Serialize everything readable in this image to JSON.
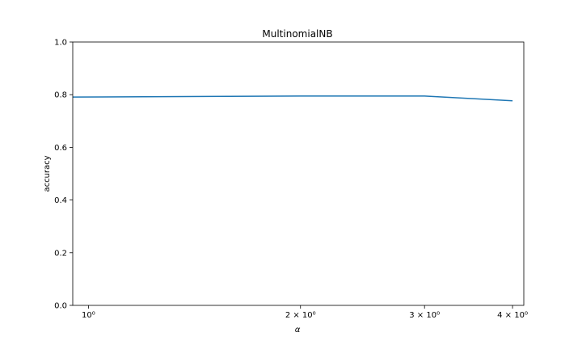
{
  "chart_data": {
    "type": "line",
    "title": "MultinomialNB",
    "xlabel": "α",
    "ylabel": "accuracy",
    "x_scale": "log",
    "xlim": [
      0.95,
      4.15
    ],
    "ylim": [
      0.0,
      1.0
    ],
    "grid": false,
    "x_ticks": [
      {
        "value": 1,
        "label": "10⁰"
      },
      {
        "value": 2,
        "label": "2 × 10⁰"
      },
      {
        "value": 3,
        "label": "3 × 10⁰"
      },
      {
        "value": 4,
        "label": "4 × 10⁰"
      }
    ],
    "y_ticks": [
      {
        "value": 0.0,
        "label": "0.0"
      },
      {
        "value": 0.2,
        "label": "0.2"
      },
      {
        "value": 0.4,
        "label": "0.4"
      },
      {
        "value": 0.6,
        "label": "0.6"
      },
      {
        "value": 0.8,
        "label": "0.8"
      },
      {
        "value": 1.0,
        "label": "1.0"
      }
    ],
    "series": [
      {
        "color": "#1f77b4",
        "x": [
          0.95,
          2.0,
          3.0,
          4.0
        ],
        "y": [
          0.791,
          0.795,
          0.795,
          0.777
        ]
      }
    ]
  }
}
